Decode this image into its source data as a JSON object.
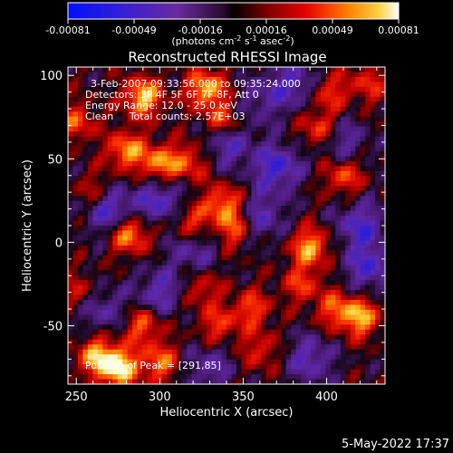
{
  "chart_data": {
    "type": "heatmap",
    "title": "Reconstructed RHESSI Image",
    "xlabel": "Heliocentric X (arcsec)",
    "ylabel": "Heliocentric Y (arcsec)",
    "xlim": [
      245,
      435
    ],
    "ylim": [
      -85,
      105
    ],
    "x_ticks": [
      250,
      300,
      350,
      400
    ],
    "y_ticks": [
      -50,
      0,
      50,
      100
    ],
    "colorbar": {
      "ticks": [
        "-0.00081",
        "-0.00049",
        "-0.00016",
        "0.00016",
        "0.00049",
        "0.00081"
      ],
      "range": [
        -0.00081,
        0.00081
      ],
      "unit_text": "(photons cm",
      "unit_sup1": "-2",
      "unit_mid1": " s",
      "unit_sup2": "-1",
      "unit_mid2": " asec",
      "unit_sup3": "-2",
      "unit_end": ")"
    },
    "annotations": [
      "3-Feb-2007 09:33:56.000 to 09:35:24.000",
      "Detectors: 3F 4F 5F 6F 7F 8F, Att 0",
      "Energy Range: 12.0 - 25.0 keV",
      "Clean     Total counts: 2.57E+03"
    ],
    "peak_label": "Position of Peak = [291,85]",
    "peak": [
      291,
      85
    ],
    "hotspots": [
      {
        "x": 275,
        "y": -75,
        "v": 1.0
      },
      {
        "x": 262,
        "y": -68,
        "v": 0.7
      },
      {
        "x": 300,
        "y": -72,
        "v": 0.6
      },
      {
        "x": 290,
        "y": 87,
        "v": 0.85
      },
      {
        "x": 328,
        "y": 92,
        "v": 0.8
      },
      {
        "x": 338,
        "y": 72,
        "v": 0.6
      },
      {
        "x": 280,
        "y": 55,
        "v": 0.7
      },
      {
        "x": 300,
        "y": 47,
        "v": 0.7
      },
      {
        "x": 318,
        "y": 48,
        "v": 0.5
      },
      {
        "x": 262,
        "y": 30,
        "v": 0.4
      },
      {
        "x": 282,
        "y": 5,
        "v": 0.75
      },
      {
        "x": 338,
        "y": 23,
        "v": 0.65
      },
      {
        "x": 318,
        "y": 12,
        "v": 0.5
      },
      {
        "x": 345,
        "y": 8,
        "v": 0.55
      },
      {
        "x": 390,
        "y": -3,
        "v": 0.75
      },
      {
        "x": 410,
        "y": 40,
        "v": 0.55
      },
      {
        "x": 395,
        "y": 68,
        "v": 0.5
      },
      {
        "x": 402,
        "y": 90,
        "v": 0.45
      },
      {
        "x": 425,
        "y": 95,
        "v": 0.4
      },
      {
        "x": 420,
        "y": -45,
        "v": 0.75
      },
      {
        "x": 405,
        "y": -40,
        "v": 0.5
      },
      {
        "x": 385,
        "y": -25,
        "v": 0.45
      },
      {
        "x": 355,
        "y": -40,
        "v": 0.5
      },
      {
        "x": 335,
        "y": -50,
        "v": 0.45
      },
      {
        "x": 290,
        "y": -50,
        "v": 0.55
      },
      {
        "x": 360,
        "y": -65,
        "v": 0.4
      },
      {
        "x": 250,
        "y": 72,
        "v": 0.5
      },
      {
        "x": 252,
        "y": -30,
        "v": 0.35
      },
      {
        "x": 325,
        "y": -28,
        "v": 0.4
      }
    ],
    "coldspots": [
      {
        "x": 270,
        "y": 20,
        "v": 0.8
      },
      {
        "x": 300,
        "y": 25,
        "v": 0.7
      },
      {
        "x": 340,
        "y": 60,
        "v": 0.7
      },
      {
        "x": 370,
        "y": 45,
        "v": 0.8
      },
      {
        "x": 360,
        "y": 15,
        "v": 0.6
      },
      {
        "x": 420,
        "y": 10,
        "v": 0.7
      },
      {
        "x": 380,
        "y": 95,
        "v": 0.6
      },
      {
        "x": 425,
        "y": -15,
        "v": 0.7
      },
      {
        "x": 320,
        "y": -5,
        "v": 0.5
      },
      {
        "x": 300,
        "y": -30,
        "v": 0.6
      },
      {
        "x": 265,
        "y": -40,
        "v": 0.5
      },
      {
        "x": 390,
        "y": -70,
        "v": 0.6
      },
      {
        "x": 330,
        "y": -75,
        "v": 0.5
      },
      {
        "x": 410,
        "y": 60,
        "v": 0.5
      },
      {
        "x": 360,
        "y": 85,
        "v": 0.4
      }
    ]
  },
  "footer": {
    "timestamp": "5-May-2022 17:37"
  }
}
